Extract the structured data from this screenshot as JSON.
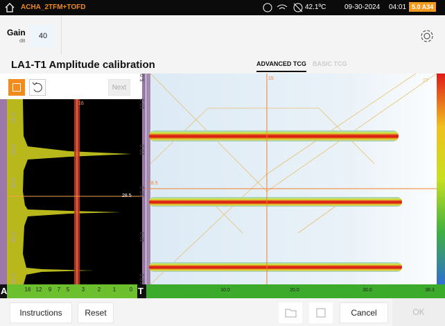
{
  "status_bar": {
    "app": "ACHA_2TFM+TOFD",
    "temperature": "42.1ºC",
    "date": "09-30-2024",
    "time": "04:01",
    "badge": "5.0 A34"
  },
  "gain": {
    "label": "Gain",
    "unit": "dB",
    "value": "40"
  },
  "page": {
    "title": "LA1-T1 Amplitude calibration",
    "tabs": [
      "ADVANCED TCG",
      "BASIC TCG"
    ]
  },
  "toolbar": {
    "next": "Next"
  },
  "a_scan": {
    "depth_labels": [
      "10.0",
      "20.0",
      "30.0",
      "40.0",
      "50.0"
    ],
    "cursor_labels": [
      "16",
      "28.5"
    ],
    "amplitude_labels": [
      "16",
      "12",
      "9",
      "7",
      "5",
      "3",
      "2",
      "1",
      "0"
    ],
    "corner": "A"
  },
  "tfm": {
    "depth_labels": [
      "5.0",
      "10.0",
      "20.0",
      "30.0",
      "40.0",
      "50.0"
    ],
    "cursor_labels": [
      "15",
      "2T",
      "28.5"
    ],
    "index_labels": [
      "10.0",
      "20.0",
      "30.0",
      "38.3"
    ],
    "corner": "T"
  },
  "buttons": {
    "instructions": "Instructions",
    "reset": "Reset",
    "cancel": "Cancel",
    "ok": "OK"
  }
}
